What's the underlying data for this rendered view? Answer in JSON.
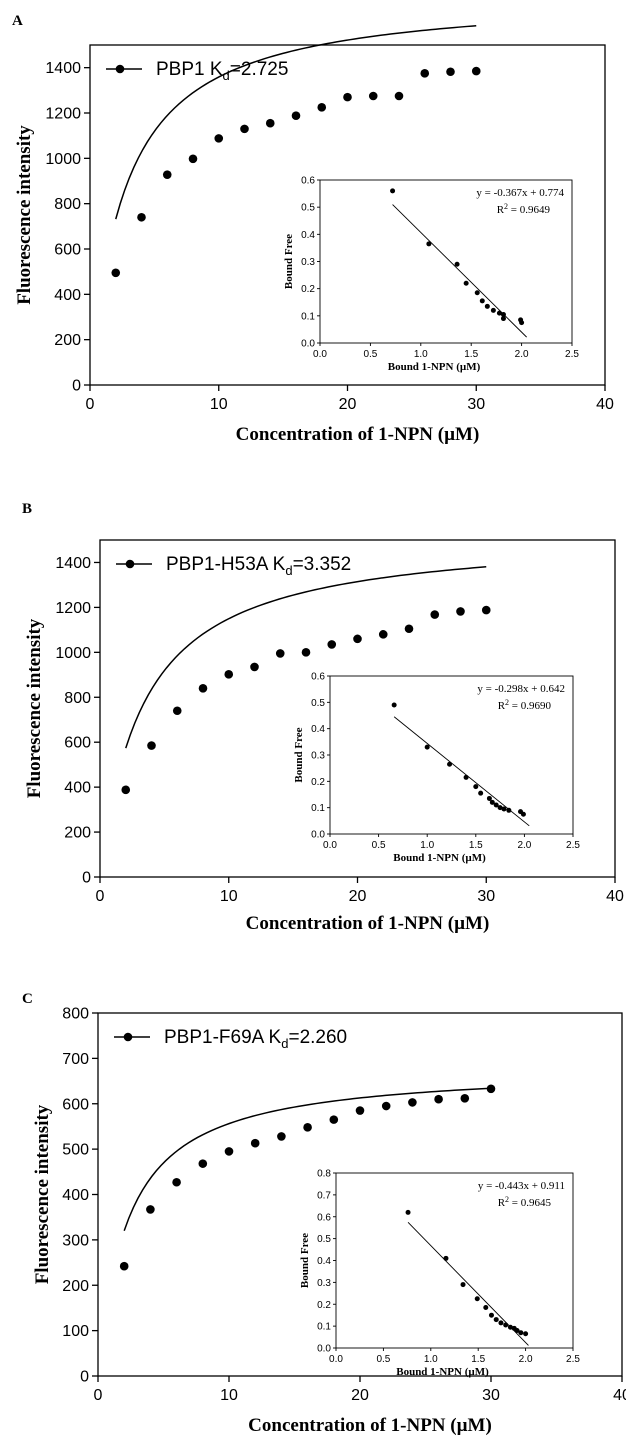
{
  "chart_data": [
    {
      "panel": "A",
      "type": "scatter",
      "xlabel": "Concentration of 1-NPN (µM)",
      "ylabel": "Fluorescence intensity",
      "xlim": [
        0,
        40
      ],
      "ylim": [
        0,
        1500
      ],
      "xticks": [
        0,
        10,
        20,
        30,
        40
      ],
      "yticks": [
        0,
        200,
        400,
        600,
        800,
        1000,
        1200,
        1400
      ],
      "legend": {
        "name": "PBP1",
        "kd_label": "K",
        "kd_sub": "d",
        "kd_value": "=2.725",
        "placement": "top-left"
      },
      "x": [
        2,
        4,
        6,
        8,
        10,
        12,
        14,
        16,
        18,
        20,
        22,
        24,
        26,
        28,
        30
      ],
      "y": [
        495,
        740,
        928,
        998,
        1088,
        1130,
        1155,
        1188,
        1225,
        1270,
        1275,
        1275,
        1375,
        1382,
        1385
      ],
      "fit": {
        "type": "saturation",
        "bmax": 1729,
        "kd": 2.725,
        "x_range": [
          2,
          30
        ]
      },
      "inset": {
        "xlabel": "Bound 1-NPN (µM)",
        "ylabel": "Bound Free",
        "xlim": [
          0,
          2.5
        ],
        "ylim": [
          0,
          0.6
        ],
        "xticks": [
          "0.0",
          "0.5",
          "1.0",
          "1.5",
          "2.0",
          "2.5"
        ],
        "yticks": [
          "0.0",
          "0.1",
          "0.2",
          "0.3",
          "0.4",
          "0.5",
          "0.6"
        ],
        "equation": "y = -0.367x + 0.774",
        "r2_label": "R",
        "r2_sup": "2",
        "r2_value": " = 0.9649",
        "slope": -0.367,
        "intercept": 0.774,
        "fit_x_range": [
          0.72,
          2.05
        ],
        "x": [
          0.72,
          1.08,
          1.36,
          1.45,
          1.56,
          1.61,
          1.66,
          1.72,
          1.78,
          1.82,
          1.82,
          1.99,
          2.0
        ],
        "y": [
          0.56,
          0.365,
          0.29,
          0.22,
          0.185,
          0.155,
          0.135,
          0.12,
          0.11,
          0.105,
          0.09,
          0.085,
          0.075
        ]
      }
    },
    {
      "panel": "B",
      "type": "scatter",
      "xlabel": "Concentration of 1-NPN (µM)",
      "ylabel": "Fluorescence intensity",
      "xlim": [
        0,
        40
      ],
      "ylim": [
        0,
        1500
      ],
      "xticks": [
        0,
        10,
        20,
        30,
        40
      ],
      "yticks": [
        0,
        200,
        400,
        600,
        800,
        1000,
        1200,
        1400
      ],
      "legend": {
        "name": "PBP1-H53A",
        "kd_label": "K",
        "kd_sub": "d",
        "kd_value": "=3.352",
        "placement": "top-left"
      },
      "x": [
        2,
        4,
        6,
        8,
        10,
        12,
        14,
        16,
        18,
        20,
        22,
        24,
        26,
        28,
        30
      ],
      "y": [
        388,
        585,
        740,
        840,
        902,
        935,
        995,
        1000,
        1035,
        1060,
        1080,
        1105,
        1168,
        1182,
        1188
      ],
      "fit": {
        "type": "saturation",
        "bmax": 1535,
        "kd": 3.352,
        "x_range": [
          2,
          30
        ]
      },
      "inset": {
        "xlabel": "Bound 1-NPN (µM)",
        "ylabel": "Bound Free",
        "xlim": [
          0,
          2.5
        ],
        "ylim": [
          0,
          0.6
        ],
        "xticks": [
          "0.0",
          "0.5",
          "1.0",
          "1.5",
          "2.0",
          "2.5"
        ],
        "yticks": [
          "0.0",
          "0.1",
          "0.2",
          "0.3",
          "0.4",
          "0.5",
          "0.6"
        ],
        "equation": "y = -0.298x + 0.642",
        "r2_label": "R",
        "r2_sup": "2",
        "r2_value": " = 0.9690",
        "slope": -0.298,
        "intercept": 0.642,
        "fit_x_range": [
          0.66,
          2.05
        ],
        "x": [
          0.66,
          1.0,
          1.23,
          1.4,
          1.5,
          1.55,
          1.64,
          1.67,
          1.71,
          1.75,
          1.79,
          1.84,
          1.96,
          1.99
        ],
        "y": [
          0.49,
          0.33,
          0.265,
          0.215,
          0.18,
          0.155,
          0.135,
          0.12,
          0.11,
          0.1,
          0.095,
          0.09,
          0.085,
          0.075
        ]
      }
    },
    {
      "panel": "C",
      "type": "scatter",
      "xlabel": "Concentration of 1-NPN (µM)",
      "ylabel": "Fluorescence intensity",
      "xlim": [
        0,
        40
      ],
      "ylim": [
        0,
        800
      ],
      "xticks": [
        0,
        10,
        20,
        30,
        40
      ],
      "yticks": [
        0,
        100,
        200,
        300,
        400,
        500,
        600,
        700,
        800
      ],
      "legend": {
        "name": "PBP1-F69A",
        "kd_label": "K",
        "kd_sub": "d",
        "kd_value": "=2.260",
        "placement": "top-left"
      },
      "x": [
        2,
        4,
        6,
        8,
        10,
        12,
        14,
        16,
        18,
        20,
        22,
        24,
        26,
        28,
        30
      ],
      "y": [
        242,
        367,
        427,
        468,
        495,
        513,
        528,
        548,
        565,
        585,
        595,
        603,
        610,
        612,
        633
      ],
      "fit": {
        "type": "saturation",
        "bmax": 682,
        "kd": 2.26,
        "x_range": [
          2,
          30
        ]
      },
      "inset": {
        "xlabel": "Bound 1-NPN (µM)",
        "ylabel": "Bound Free",
        "xlim": [
          0,
          2.5
        ],
        "ylim": [
          0,
          0.8
        ],
        "xticks": [
          "0.0",
          "0.5",
          "1.0",
          "1.5",
          "2.0",
          "2.5"
        ],
        "yticks": [
          "0.0",
          "0.1",
          "0.2",
          "0.3",
          "0.4",
          "0.5",
          "0.6",
          "0.7",
          "0.8"
        ],
        "equation": "y = -0.443x + 0.911",
        "r2_label": "R",
        "r2_sup": "2",
        "r2_value": " = 0.9645",
        "slope": -0.443,
        "intercept": 0.911,
        "fit_x_range": [
          0.76,
          2.03
        ],
        "x": [
          0.76,
          1.16,
          1.34,
          1.49,
          1.58,
          1.64,
          1.69,
          1.74,
          1.79,
          1.84,
          1.88,
          1.91,
          1.95,
          2.0
        ],
        "y": [
          0.62,
          0.41,
          0.29,
          0.225,
          0.185,
          0.15,
          0.13,
          0.115,
          0.105,
          0.095,
          0.09,
          0.08,
          0.07,
          0.065
        ]
      }
    }
  ]
}
